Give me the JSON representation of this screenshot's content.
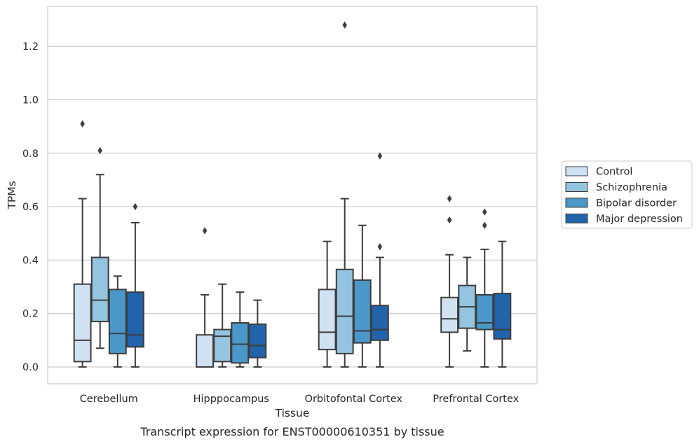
{
  "caption": "Transcript expression for ENST00000610351 by tissue",
  "chart_data": {
    "type": "box",
    "xlabel": "Tissue",
    "ylabel": "TPMs",
    "ylim": [
      -0.063,
      1.35
    ],
    "yticks": [
      "0.0",
      "0.2",
      "0.4",
      "0.6",
      "0.8",
      "1.0",
      "1.2"
    ],
    "grid": true,
    "legend_position": "right",
    "categories": [
      "Cerebellum",
      "Hipppocampus",
      "Orbitofontal Cortex",
      "Prefrontal Cortex"
    ],
    "series": [
      {
        "name": "Control",
        "color": "#d0e1f2",
        "boxes": [
          {
            "whisker_low": 0.0,
            "q1": 0.02,
            "median": 0.1,
            "q3": 0.31,
            "whisker_high": 0.63,
            "outliers": [
              0.91
            ]
          },
          {
            "whisker_low": 0.0,
            "q1": 0.0,
            "median": 0.0,
            "q3": 0.12,
            "whisker_high": 0.27,
            "outliers": [
              0.51
            ]
          },
          {
            "whisker_low": 0.0,
            "q1": 0.065,
            "median": 0.13,
            "q3": 0.29,
            "whisker_high": 0.47,
            "outliers": []
          },
          {
            "whisker_low": 0.0,
            "q1": 0.13,
            "median": 0.18,
            "q3": 0.26,
            "whisker_high": 0.42,
            "outliers": [
              0.55,
              0.63
            ]
          }
        ]
      },
      {
        "name": "Schizophrenia",
        "color": "#94c4df",
        "boxes": [
          {
            "whisker_low": 0.07,
            "q1": 0.17,
            "median": 0.25,
            "q3": 0.41,
            "whisker_high": 0.72,
            "outliers": [
              0.81
            ]
          },
          {
            "whisker_low": 0.0,
            "q1": 0.02,
            "median": 0.115,
            "q3": 0.14,
            "whisker_high": 0.31,
            "outliers": []
          },
          {
            "whisker_low": 0.0,
            "q1": 0.05,
            "median": 0.19,
            "q3": 0.365,
            "whisker_high": 0.63,
            "outliers": [
              1.28
            ]
          },
          {
            "whisker_low": 0.06,
            "q1": 0.145,
            "median": 0.225,
            "q3": 0.305,
            "whisker_high": 0.41,
            "outliers": []
          }
        ]
      },
      {
        "name": "Bipolar disorder",
        "color": "#4a98c9",
        "boxes": [
          {
            "whisker_low": 0.0,
            "q1": 0.05,
            "median": 0.125,
            "q3": 0.29,
            "whisker_high": 0.34,
            "outliers": []
          },
          {
            "whisker_low": 0.0,
            "q1": 0.015,
            "median": 0.085,
            "q3": 0.165,
            "whisker_high": 0.28,
            "outliers": []
          },
          {
            "whisker_low": 0.0,
            "q1": 0.09,
            "median": 0.135,
            "q3": 0.325,
            "whisker_high": 0.53,
            "outliers": []
          },
          {
            "whisker_low": 0.0,
            "q1": 0.14,
            "median": 0.165,
            "q3": 0.27,
            "whisker_high": 0.44,
            "outliers": [
              0.53,
              0.58
            ]
          }
        ]
      },
      {
        "name": "Major depression",
        "color": "#2164ab",
        "boxes": [
          {
            "whisker_low": 0.0,
            "q1": 0.075,
            "median": 0.12,
            "q3": 0.28,
            "whisker_high": 0.54,
            "outliers": [
              0.6
            ]
          },
          {
            "whisker_low": 0.0,
            "q1": 0.035,
            "median": 0.08,
            "q3": 0.16,
            "whisker_high": 0.25,
            "outliers": []
          },
          {
            "whisker_low": 0.0,
            "q1": 0.1,
            "median": 0.14,
            "q3": 0.23,
            "whisker_high": 0.41,
            "outliers": [
              0.45,
              0.79
            ]
          },
          {
            "whisker_low": 0.0,
            "q1": 0.105,
            "median": 0.14,
            "q3": 0.275,
            "whisker_high": 0.47,
            "outliers": []
          }
        ]
      }
    ]
  }
}
